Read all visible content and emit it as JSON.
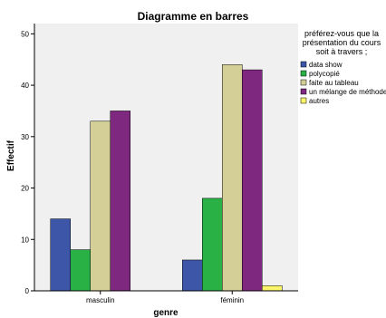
{
  "chart_data": {
    "type": "bar",
    "title": "Diagramme en barres",
    "xlabel": "genre",
    "ylabel": "Effectif",
    "categories": [
      "masculin",
      "féminin"
    ],
    "ylim": [
      0,
      52
    ],
    "yticks": [
      0,
      10,
      20,
      30,
      40,
      50
    ],
    "legend_title": "préférez-vous que la présentation du cours soit à travers ;",
    "legend_position": "right",
    "plot_background": "#f0f0f0",
    "series": [
      {
        "name": "data show",
        "color": "#3d56a8",
        "values": [
          14,
          6
        ]
      },
      {
        "name": "polycopié",
        "color": "#29b146",
        "values": [
          8,
          18
        ]
      },
      {
        "name": "faite au tableau",
        "color": "#d3cf97",
        "values": [
          33,
          44
        ]
      },
      {
        "name": "un mélange de méthodes",
        "color": "#7f2880",
        "values": [
          35,
          43
        ]
      },
      {
        "name": "autres",
        "color": "#fbf56b",
        "values": [
          0,
          1
        ]
      }
    ]
  }
}
